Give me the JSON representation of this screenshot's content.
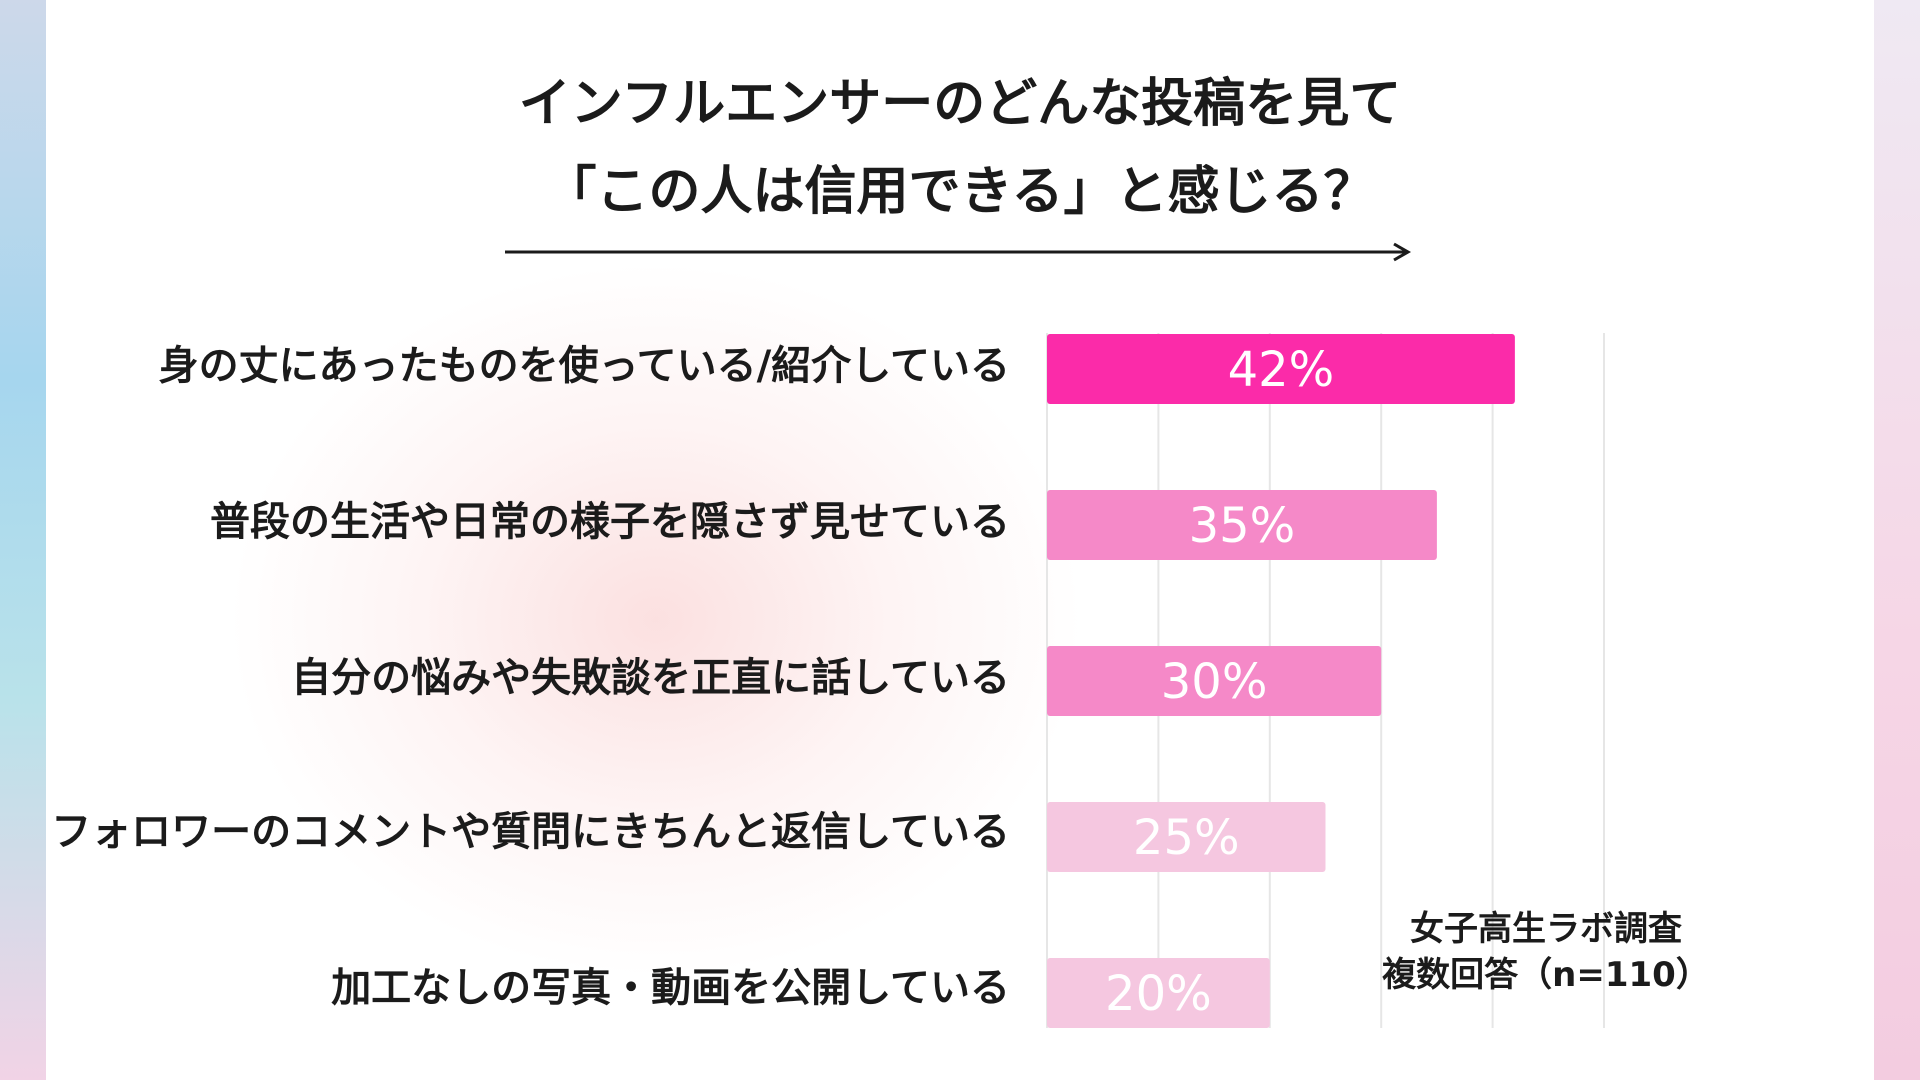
{
  "title": {
    "line1": "インフルエンサーのどんな投稿を見て",
    "line2": "「この人は信用できる」と感じる？"
  },
  "source": {
    "line1": "女子高生ラボ調査",
    "line2": "複数回答（n=110）"
  },
  "colors": {
    "bar1": "#fb2ba9",
    "bar2": "#f589c8",
    "bar3": "#f589c8",
    "bar4": "#f5c7e0",
    "bar5": "#f5c7e0",
    "grid": "#e6e6e6",
    "text": "#1b1b1b"
  },
  "chart_data": {
    "type": "bar",
    "orientation": "horizontal",
    "title": "インフルエンサーのどんな投稿を見て「この人は信用できる」と感じる？",
    "categories": [
      "身の丈にあったものを使っている/紹介している",
      "普段の生活や日常の様子を隠さず見せている",
      "自分の悩みや失敗談を正直に話している",
      "フォロワーのコメントや質問にきちんと返信している",
      "加工なしの写真・動画を公開している"
    ],
    "values": [
      42,
      35,
      30,
      25,
      20
    ],
    "data_labels": [
      "42%",
      "35%",
      "30%",
      "25%",
      "20%"
    ],
    "unit": "%",
    "xlim": [
      0,
      50
    ],
    "gridlines": [
      0,
      10,
      20,
      30,
      40,
      50
    ],
    "grid": true,
    "legend": "none"
  }
}
